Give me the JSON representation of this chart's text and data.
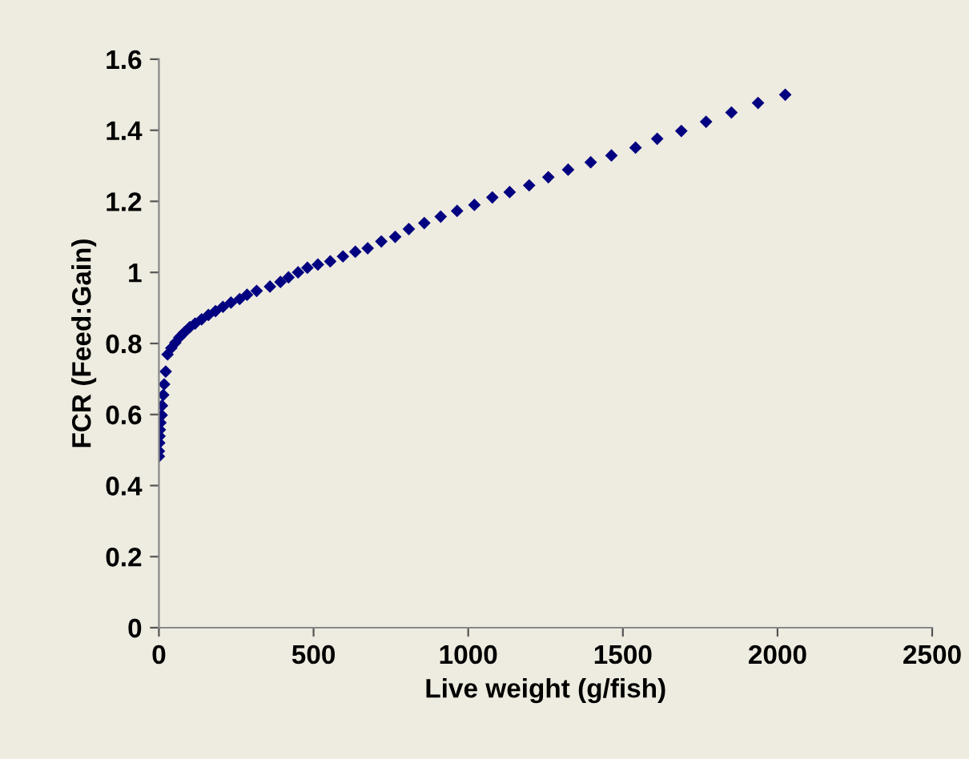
{
  "chart_data": {
    "type": "scatter",
    "xlabel": "Live weight (g/fish)",
    "ylabel": "FCR (Feed:Gain)",
    "series": [
      {
        "color": "#000080",
        "x": [
          0,
          0,
          1,
          2,
          3,
          5,
          9,
          10,
          14,
          17,
          22,
          28,
          40,
          53,
          66,
          83,
          100,
          117,
          138,
          160,
          183,
          207,
          233,
          261,
          285,
          316,
          359,
          393,
          419,
          450,
          480,
          514,
          554,
          595,
          635,
          675,
          719,
          764,
          808,
          858,
          911,
          964,
          1020,
          1078,
          1134,
          1197,
          1259,
          1323,
          1396,
          1463,
          1541,
          1611,
          1689,
          1769,
          1851,
          1937,
          2025
        ],
        "values": [
          0.482,
          0.497,
          0.52,
          0.539,
          0.557,
          0.577,
          0.598,
          0.625,
          0.655,
          0.685,
          0.721,
          0.769,
          0.787,
          0.802,
          0.817,
          0.832,
          0.846,
          0.856,
          0.868,
          0.88,
          0.891,
          0.903,
          0.915,
          0.925,
          0.937,
          0.948,
          0.96,
          0.973,
          0.986,
          1.0,
          1.013,
          1.022,
          1.031,
          1.045,
          1.058,
          1.068,
          1.087,
          1.1,
          1.122,
          1.139,
          1.157,
          1.173,
          1.19,
          1.211,
          1.226,
          1.245,
          1.268,
          1.289,
          1.31,
          1.329,
          1.351,
          1.376,
          1.398,
          1.424,
          1.45,
          1.477,
          1.5
        ]
      }
    ],
    "xlim": [
      0,
      2500
    ],
    "xticks": [
      0,
      500,
      1000,
      1500,
      2000,
      2500
    ],
    "ylim": [
      0,
      1.6
    ],
    "yticks": [
      0,
      0.2,
      0.4,
      0.6,
      0.8,
      1,
      1.2,
      1.4,
      1.6
    ],
    "marker": "diamond",
    "grid": false,
    "legend": false
  }
}
